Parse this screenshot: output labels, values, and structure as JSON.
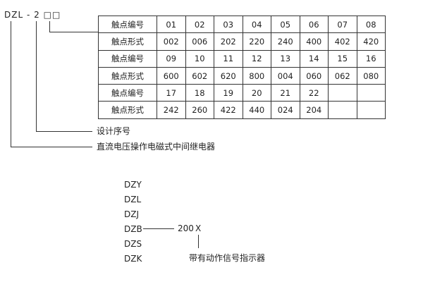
{
  "model": {
    "prefix": "DZL",
    "dash": "-",
    "digit": "2",
    "boxes": "□□"
  },
  "table": {
    "rows": [
      [
        "触点编号",
        "01",
        "02",
        "03",
        "04",
        "05",
        "06",
        "07",
        "08"
      ],
      [
        "触点形式",
        "002",
        "006",
        "202",
        "220",
        "240",
        "400",
        "402",
        "420"
      ],
      [
        "触点编号",
        "09",
        "10",
        "11",
        "12",
        "13",
        "14",
        "15",
        "16"
      ],
      [
        "触点形式",
        "600",
        "602",
        "620",
        "800",
        "004",
        "060",
        "062",
        "080"
      ],
      [
        "触点编号",
        "17",
        "18",
        "19",
        "20",
        "21",
        "22",
        "",
        ""
      ],
      [
        "触点形式",
        "242",
        "260",
        "422",
        "440",
        "024",
        "204",
        "",
        ""
      ]
    ]
  },
  "labels": {
    "design_no": "设计序号",
    "relay_type": "直流电压操作电磁式中间继电器"
  },
  "series": [
    "DZY",
    "DZL",
    "DZJ",
    "DZB",
    "DZS",
    "DZK"
  ],
  "suffix": {
    "code": "200",
    "x": "X",
    "note": "带有动作信号指示器"
  }
}
